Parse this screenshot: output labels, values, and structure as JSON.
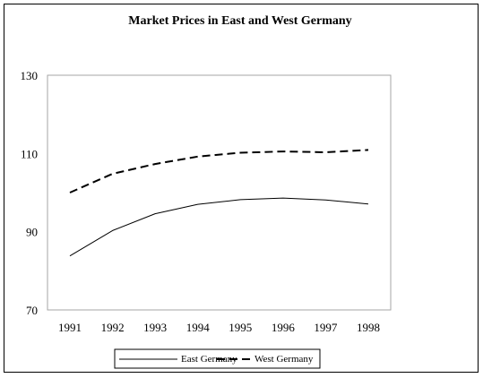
{
  "chart_data": {
    "type": "line",
    "title": "Market Prices in East and West Germany",
    "xlabel": "",
    "ylabel": "",
    "categories": [
      "1991",
      "1992",
      "1993",
      "1994",
      "1995",
      "1996",
      "1997",
      "1998"
    ],
    "ylim": [
      70,
      130
    ],
    "yticks": [
      "70",
      "90",
      "110",
      "130"
    ],
    "grid": false,
    "legend_position": "bottom",
    "series": [
      {
        "name": "East Germany",
        "style": "solid",
        "color": "#000000",
        "values": [
          83.8,
          90.3,
          94.6,
          97.0,
          98.2,
          98.6,
          98.1,
          97.1
        ]
      },
      {
        "name": "West Germany",
        "style": "dashed",
        "color": "#000000",
        "values": [
          100.0,
          104.8,
          107.3,
          109.2,
          110.2,
          110.5,
          110.3,
          110.9
        ]
      }
    ]
  }
}
